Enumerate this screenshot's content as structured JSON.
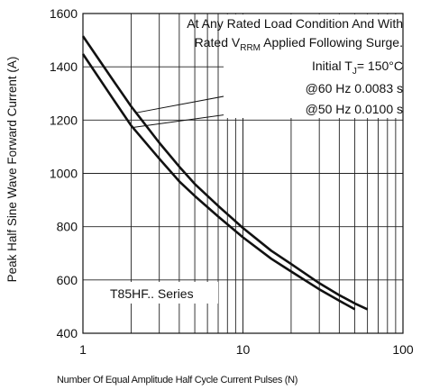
{
  "chart_data": {
    "type": "line",
    "xscale": "log",
    "xlim": [
      1,
      100
    ],
    "ylim": [
      400,
      1600
    ],
    "grid": true,
    "xlabel": "Number Of Equal Amplitude Half Cycle Current Pulses (N)",
    "ylabel": "Peak Half Sine Wave Forward Current (A)",
    "xticks": [
      {
        "value": 1,
        "label": "1"
      },
      {
        "value": 10,
        "label": "10"
      },
      {
        "value": 100,
        "label": "100"
      }
    ],
    "yticks": [
      {
        "value": 400,
        "label": "400"
      },
      {
        "value": 600,
        "label": "600"
      },
      {
        "value": 800,
        "label": "800"
      },
      {
        "value": 1000,
        "label": "1000"
      },
      {
        "value": 1200,
        "label": "1200"
      },
      {
        "value": 1400,
        "label": "1400"
      },
      {
        "value": 1600,
        "label": "1600"
      }
    ],
    "series": [
      {
        "name": "@60 Hz 0.0083 s",
        "x": [
          1,
          1.5,
          2,
          3,
          4,
          5,
          7,
          10,
          15,
          20,
          30,
          40,
          50,
          60
        ],
        "y": [
          1515,
          1360,
          1252,
          1115,
          1025,
          960,
          878,
          795,
          710,
          660,
          588,
          543,
          512,
          490
        ]
      },
      {
        "name": "@50 Hz 0.0100 s",
        "x": [
          1,
          1.5,
          2,
          3,
          4,
          5,
          7,
          10,
          15,
          20,
          30,
          40,
          50
        ],
        "y": [
          1448,
          1290,
          1180,
          1055,
          970,
          915,
          838,
          760,
          680,
          632,
          565,
          522,
          490
        ]
      }
    ],
    "annotations": {
      "box_line1": "At Any Rated Load Condition And With",
      "box_line2_pre": "Rated V",
      "box_line2_sub": "RRM",
      "box_line2_post": " Applied Following Surge.",
      "tj_pre": "Initial T",
      "tj_sub": "J",
      "tj_post": "= 150°C",
      "label_60hz": "@60 Hz 0.0083 s",
      "label_50hz": "@50 Hz 0.0100 s",
      "series_label": "T85HF.. Series"
    }
  }
}
